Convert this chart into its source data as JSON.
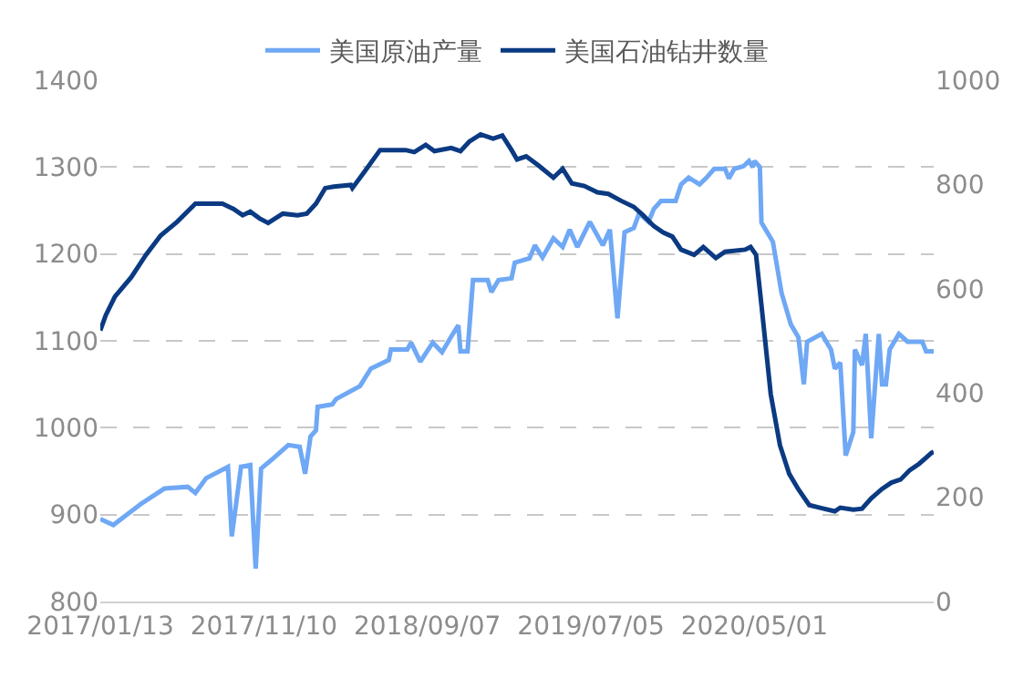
{
  "chart_data": {
    "type": "line",
    "xlim": [
      "2017-01-13",
      "2021-03-27"
    ],
    "xticks": [
      {
        "value": "2017-01-13",
        "label": "2017/01/13"
      },
      {
        "value": "2017-11-10",
        "label": "2017/11/10"
      },
      {
        "value": "2018-09-07",
        "label": "2018/09/07"
      },
      {
        "value": "2019-07-05",
        "label": "2019/07/05"
      },
      {
        "value": "2020-05-01",
        "label": "2020/05/01"
      }
    ],
    "ylim": [
      800,
      1400
    ],
    "yticks": [
      800,
      900,
      1000,
      1100,
      1200,
      1300,
      1400
    ],
    "y2lim": [
      0,
      1000
    ],
    "y2ticks": [
      0,
      200,
      400,
      600,
      800,
      1000
    ],
    "grid": "y",
    "legend": "top",
    "marker": "none",
    "line_style": "solid",
    "series": [
      {
        "name": "美国原油产量",
        "color": "#6fa8f5",
        "x": [
          "2017-01-13",
          "2017-02-06",
          "2017-03-28",
          "2017-05-11",
          "2017-06-23",
          "2017-07-07",
          "2017-07-27",
          "2017-09-05",
          "2017-09-12",
          "2017-09-29",
          "2017-10-16",
          "2017-10-26",
          "2017-11-05",
          "2017-11-28",
          "2017-12-25",
          "2018-01-15",
          "2018-01-25",
          "2018-02-04",
          "2018-02-14",
          "2018-02-17",
          "2018-03-16",
          "2018-03-23",
          "2018-05-06",
          "2018-05-26",
          "2018-06-28",
          "2018-07-02",
          "2018-08-01",
          "2018-08-08",
          "2018-08-25",
          "2018-09-17",
          "2018-10-04",
          "2018-10-21",
          "2018-11-03",
          "2018-11-07",
          "2018-11-20",
          "2018-11-30",
          "2018-12-27",
          "2019-01-03",
          "2019-01-16",
          "2019-02-09",
          "2019-02-15",
          "2019-03-14",
          "2019-03-24",
          "2019-04-07",
          "2019-04-27",
          "2019-05-14",
          "2019-05-27",
          "2019-06-10",
          "2019-07-03",
          "2019-07-27",
          "2019-08-09",
          "2019-08-23",
          "2019-09-05",
          "2019-09-22",
          "2019-10-02",
          "2019-10-19",
          "2019-10-29",
          "2019-11-11",
          "2019-12-08",
          "2019-12-18",
          "2020-01-01",
          "2020-01-21",
          "2020-02-03",
          "2020-02-17",
          "2020-03-08",
          "2020-03-15",
          "2020-03-25",
          "2020-04-11",
          "2020-04-21",
          "2020-04-28",
          "2020-05-01",
          "2020-05-11",
          "2020-05-14",
          "2020-06-04",
          "2020-06-20",
          "2020-07-07",
          "2020-07-21",
          "2020-07-31",
          "2020-08-06",
          "2020-09-02",
          "2020-09-19",
          "2020-09-26",
          "2020-10-06",
          "2020-10-16",
          "2020-10-30",
          "2020-11-02",
          "2020-11-15",
          "2020-11-22",
          "2020-12-02",
          "2020-12-16",
          "2020-12-22",
          "2020-12-29",
          "2021-01-05",
          "2021-01-22",
          "2021-02-07",
          "2021-03-06",
          "2021-03-13",
          "2021-03-27"
        ],
        "values": [
          895,
          888,
          912,
          930,
          932,
          925,
          942,
          955,
          875,
          955,
          957,
          838,
          953,
          965,
          980,
          978,
          947,
          990,
          997,
          1024,
          1027,
          1033,
          1048,
          1068,
          1078,
          1090,
          1090,
          1098,
          1076,
          1098,
          1087,
          1105,
          1118,
          1088,
          1088,
          1170,
          1170,
          1156,
          1170,
          1172,
          1190,
          1195,
          1210,
          1196,
          1218,
          1208,
          1228,
          1208,
          1237,
          1210,
          1228,
          1126,
          1225,
          1230,
          1247,
          1237,
          1252,
          1261,
          1261,
          1280,
          1288,
          1280,
          1288,
          1298,
          1298,
          1287,
          1298,
          1301,
          1307,
          1300,
          1307,
          1300,
          1236,
          1214,
          1155,
          1119,
          1104,
          1050,
          1099,
          1108,
          1090,
          1068,
          1075,
          968,
          995,
          1090,
          1072,
          1108,
          988,
          1108,
          1050,
          1050,
          1090,
          1108,
          1099,
          1099,
          1088,
          1088
        ]
      },
      {
        "name": "美国石油钻井数量",
        "color": "#0b3a82",
        "axis": "y2",
        "x": [
          "2017-01-13",
          "2017-01-23",
          "2017-02-09",
          "2017-03-11",
          "2017-04-07",
          "2017-05-04",
          "2017-06-03",
          "2017-07-07",
          "2017-08-26",
          "2017-09-15",
          "2017-10-02",
          "2017-10-16",
          "2017-11-02",
          "2017-11-18",
          "2017-12-15",
          "2018-01-11",
          "2018-01-28",
          "2018-02-14",
          "2018-03-03",
          "2018-03-19",
          "2018-04-19",
          "2018-04-22",
          "2018-05-16",
          "2018-06-12",
          "2018-07-12",
          "2018-07-29",
          "2018-08-14",
          "2018-09-04",
          "2018-09-20",
          "2018-10-21",
          "2018-11-07",
          "2018-11-23",
          "2018-12-14",
          "2019-01-06",
          "2019-01-23",
          "2019-02-09",
          "2019-02-19",
          "2019-03-08",
          "2019-03-31",
          "2019-04-27",
          "2019-05-14",
          "2019-05-31",
          "2019-06-23",
          "2019-07-17",
          "2019-08-06",
          "2019-08-29",
          "2019-09-22",
          "2019-10-09",
          "2019-10-29",
          "2019-11-15",
          "2019-12-02",
          "2019-12-18",
          "2020-01-11",
          "2020-01-28",
          "2020-02-20",
          "2020-03-08",
          "2020-04-14",
          "2020-04-24",
          "2020-05-04",
          "2020-05-14",
          "2020-05-31",
          "2020-06-17",
          "2020-07-04",
          "2020-07-21",
          "2020-08-10",
          "2020-09-02",
          "2020-09-26",
          "2020-10-06",
          "2020-10-30",
          "2020-11-15",
          "2020-12-02",
          "2020-12-22",
          "2021-01-08",
          "2021-01-25",
          "2021-02-11",
          "2021-02-28",
          "2021-03-23",
          "2021-03-27"
        ],
        "values": [
          520,
          549,
          585,
          622,
          665,
          702,
          728,
          763,
          763,
          753,
          741,
          748,
          735,
          726,
          744,
          741,
          744,
          763,
          793,
          796,
          799,
          793,
          827,
          866,
          866,
          866,
          862,
          876,
          864,
          870,
          864,
          882,
          896,
          888,
          894,
          866,
          848,
          854,
          836,
          813,
          830,
          802,
          797,
          785,
          782,
          769,
          757,
          741,
          720,
          708,
          700,
          675,
          665,
          680,
          659,
          671,
          675,
          680,
          665,
          568,
          398,
          300,
          245,
          215,
          185,
          179,
          173,
          180,
          176,
          178,
          198,
          216,
          228,
          234,
          252,
          264,
          285,
          287
        ]
      }
    ]
  }
}
